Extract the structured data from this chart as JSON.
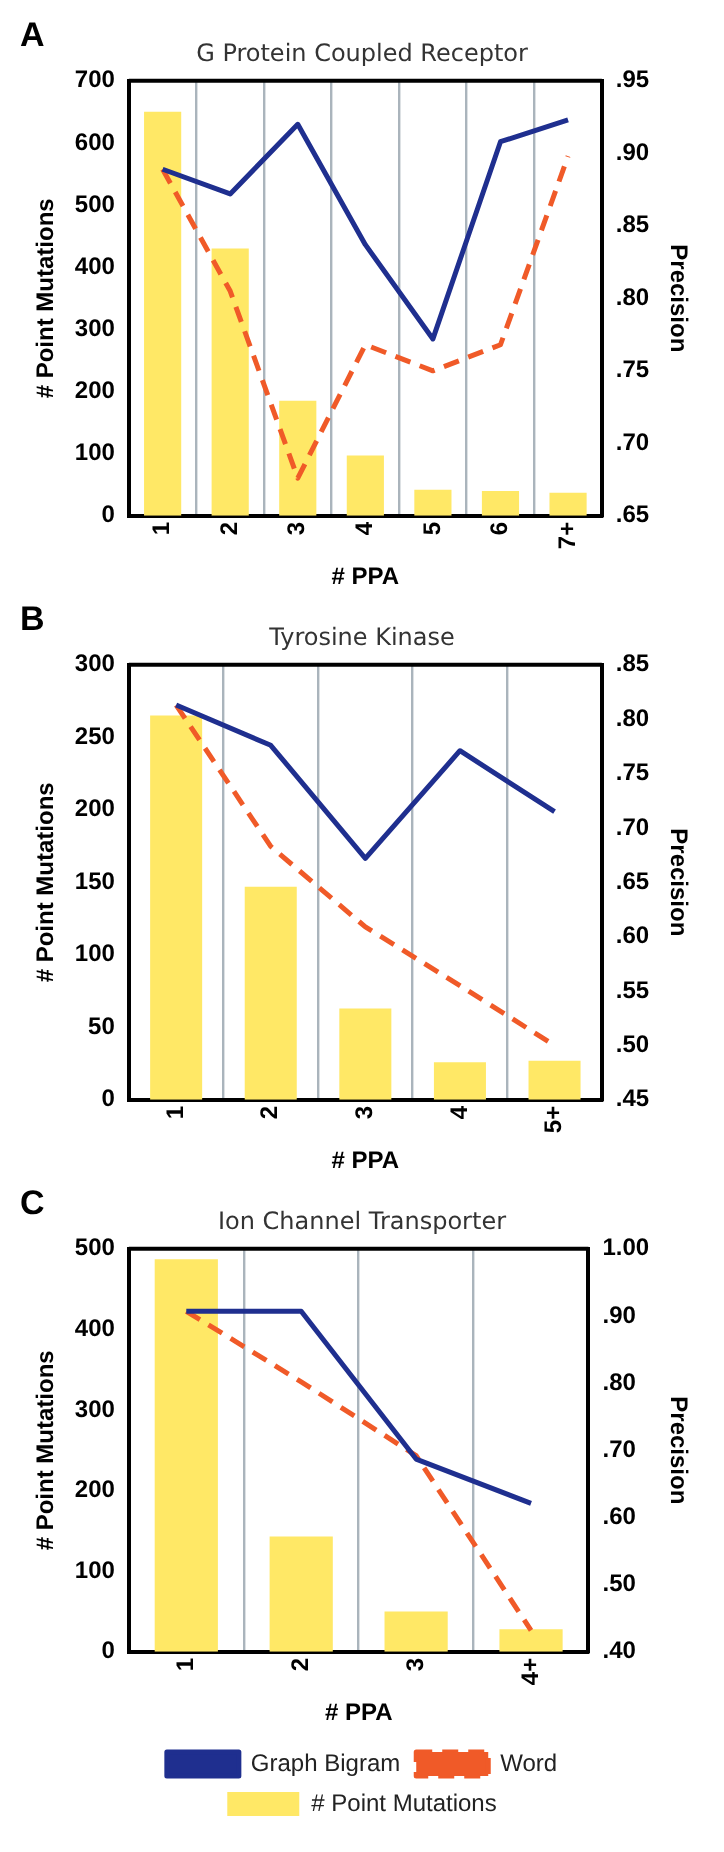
{
  "chart_data": [
    {
      "type": "bar",
      "title": "G Protein Coupled Receptor",
      "annotations": [
        "A"
      ],
      "xlabel": "# PPA",
      "ylabel": "# Point Mutations",
      "y2label": "Precision",
      "categories": [
        "1",
        "2",
        "3",
        "4",
        "5",
        "6",
        "7+"
      ],
      "ylim": [
        0,
        700
      ],
      "yticks": [
        0,
        100,
        200,
        300,
        400,
        500,
        600,
        700
      ],
      "y2lim": [
        0.65,
        0.95
      ],
      "y2ticks": [
        {
          "value": 0.65,
          "label": ".65"
        },
        {
          "value": 0.7,
          "label": ".70"
        },
        {
          "value": 0.75,
          "label": ".75"
        },
        {
          "value": 0.8,
          "label": ".80"
        },
        {
          "value": 0.85,
          "label": ".85"
        },
        {
          "value": 0.9,
          "label": ".90"
        },
        {
          "value": 0.95,
          "label": ".95"
        }
      ],
      "grid": "x",
      "legend": false,
      "series": [
        {
          "color": "#ffe866",
          "values": [
            650,
            430,
            185,
            97,
            42,
            40,
            37
          ]
        },
        {
          "type": "line",
          "axis": "y2",
          "color": "#1f2f8f",
          "line_style": "solid",
          "values": [
            0.889,
            0.872,
            0.92,
            0.837,
            0.772,
            0.908,
            0.923
          ]
        },
        {
          "type": "line",
          "axis": "y2",
          "color": "#f05a28",
          "line_style": "dashed",
          "values": [
            0.889,
            0.805,
            0.676,
            0.768,
            0.75,
            0.768,
            0.898
          ]
        }
      ]
    },
    {
      "type": "bar",
      "title": "Tyrosine Kinase",
      "annotations": [
        "B"
      ],
      "xlabel": "# PPA",
      "ylabel": "# Point Mutations",
      "y2label": "Precision",
      "categories": [
        "1",
        "2",
        "3",
        "4",
        "5+"
      ],
      "ylim": [
        0,
        300
      ],
      "yticks": [
        0,
        50,
        100,
        150,
        200,
        250,
        300
      ],
      "y2lim": [
        0.45,
        0.85
      ],
      "y2ticks": [
        {
          "value": 0.45,
          "label": ".45"
        },
        {
          "value": 0.5,
          "label": ".50"
        },
        {
          "value": 0.55,
          "label": ".55"
        },
        {
          "value": 0.6,
          "label": ".60"
        },
        {
          "value": 0.65,
          "label": ".65"
        },
        {
          "value": 0.7,
          "label": ".70"
        },
        {
          "value": 0.75,
          "label": ".75"
        },
        {
          "value": 0.8,
          "label": ".80"
        },
        {
          "value": 0.85,
          "label": ".85"
        }
      ],
      "grid": "x",
      "legend": false,
      "series": [
        {
          "color": "#ffe866",
          "values": [
            265,
            147,
            63,
            26,
            27
          ]
        },
        {
          "type": "line",
          "axis": "y2",
          "color": "#1f2f8f",
          "line_style": "solid",
          "values": [
            0.813,
            0.776,
            0.672,
            0.771,
            0.715
          ]
        },
        {
          "type": "line",
          "axis": "y2",
          "color": "#f05a28",
          "line_style": "dashed",
          "values": [
            0.813,
            0.683,
            0.609,
            0.555,
            0.5
          ]
        }
      ]
    },
    {
      "type": "bar",
      "title": "Ion Channel Transporter",
      "annotations": [
        "C"
      ],
      "xlabel": "# PPA",
      "ylabel": "# Point Mutations",
      "y2label": "Precision",
      "categories": [
        "1",
        "2",
        "3",
        "4+"
      ],
      "ylim": [
        0,
        500
      ],
      "yticks": [
        0,
        100,
        200,
        300,
        400,
        500
      ],
      "y2lim": [
        0.4,
        1.0
      ],
      "y2ticks": [
        {
          "value": 0.4,
          "label": ".40"
        },
        {
          "value": 0.5,
          "label": ".50"
        },
        {
          "value": 0.6,
          "label": ".60"
        },
        {
          "value": 0.7,
          "label": ".70"
        },
        {
          "value": 0.8,
          "label": ".80"
        },
        {
          "value": 0.9,
          "label": ".90"
        },
        {
          "value": 1.0,
          "label": "1.00"
        }
      ],
      "grid": "x",
      "legend": "bottom",
      "series": [
        {
          "name": "# Point Mutations",
          "color": "#ffe866",
          "values": [
            487,
            143,
            50,
            28
          ]
        },
        {
          "type": "line",
          "axis": "y2",
          "name": "Graph Bigram",
          "color": "#1f2f8f",
          "line_style": "solid",
          "values": [
            0.907,
            0.907,
            0.687,
            0.621
          ]
        },
        {
          "type": "line",
          "axis": "y2",
          "name": "Word",
          "color": "#f05a28",
          "line_style": "dashed",
          "values": [
            0.907,
            0.802,
            0.692,
            0.432
          ]
        }
      ]
    }
  ]
}
